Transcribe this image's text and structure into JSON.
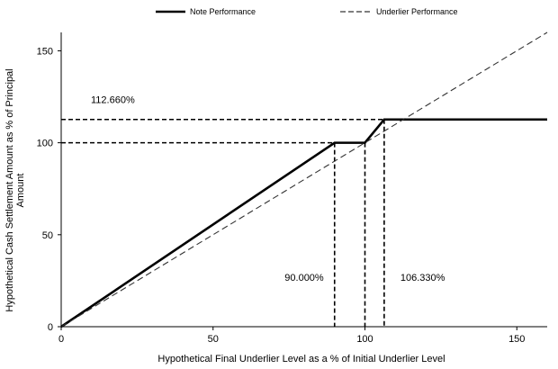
{
  "chart_data": {
    "type": "line",
    "xlabel": "Hypothetical Final Underlier Level as a % of Initial Underlier Level",
    "ylabel_lines": [
      "Hypothetical Cash Settlement  Amount as % of Principal",
      "Amount"
    ],
    "xlim": [
      0,
      160
    ],
    "ylim": [
      0,
      160
    ],
    "x_ticks": [
      0,
      50,
      100,
      150
    ],
    "y_ticks": [
      0,
      50,
      100,
      150
    ],
    "grid": false,
    "legend_position": "top",
    "series": [
      {
        "name": "Note Performance",
        "style": "solid",
        "color": "#000000",
        "points": [
          [
            0,
            0
          ],
          [
            90,
            100
          ],
          [
            100,
            100
          ],
          [
            106.33,
            112.66
          ],
          [
            160,
            112.66
          ]
        ]
      },
      {
        "name": "Underlier Performance",
        "style": "dashed",
        "color": "#333333",
        "points": [
          [
            0,
            0
          ],
          [
            160,
            160
          ]
        ]
      }
    ],
    "reference_lines": {
      "horizontal": [
        100,
        112.66
      ],
      "vertical": [
        90,
        100,
        106.33
      ]
    },
    "annotations": [
      {
        "text": "112.660%",
        "x": 17,
        "y": 121.5
      },
      {
        "text": "90.000%",
        "x": 80,
        "y": 25
      },
      {
        "text": "106.330%",
        "x": 119,
        "y": 25
      }
    ]
  }
}
